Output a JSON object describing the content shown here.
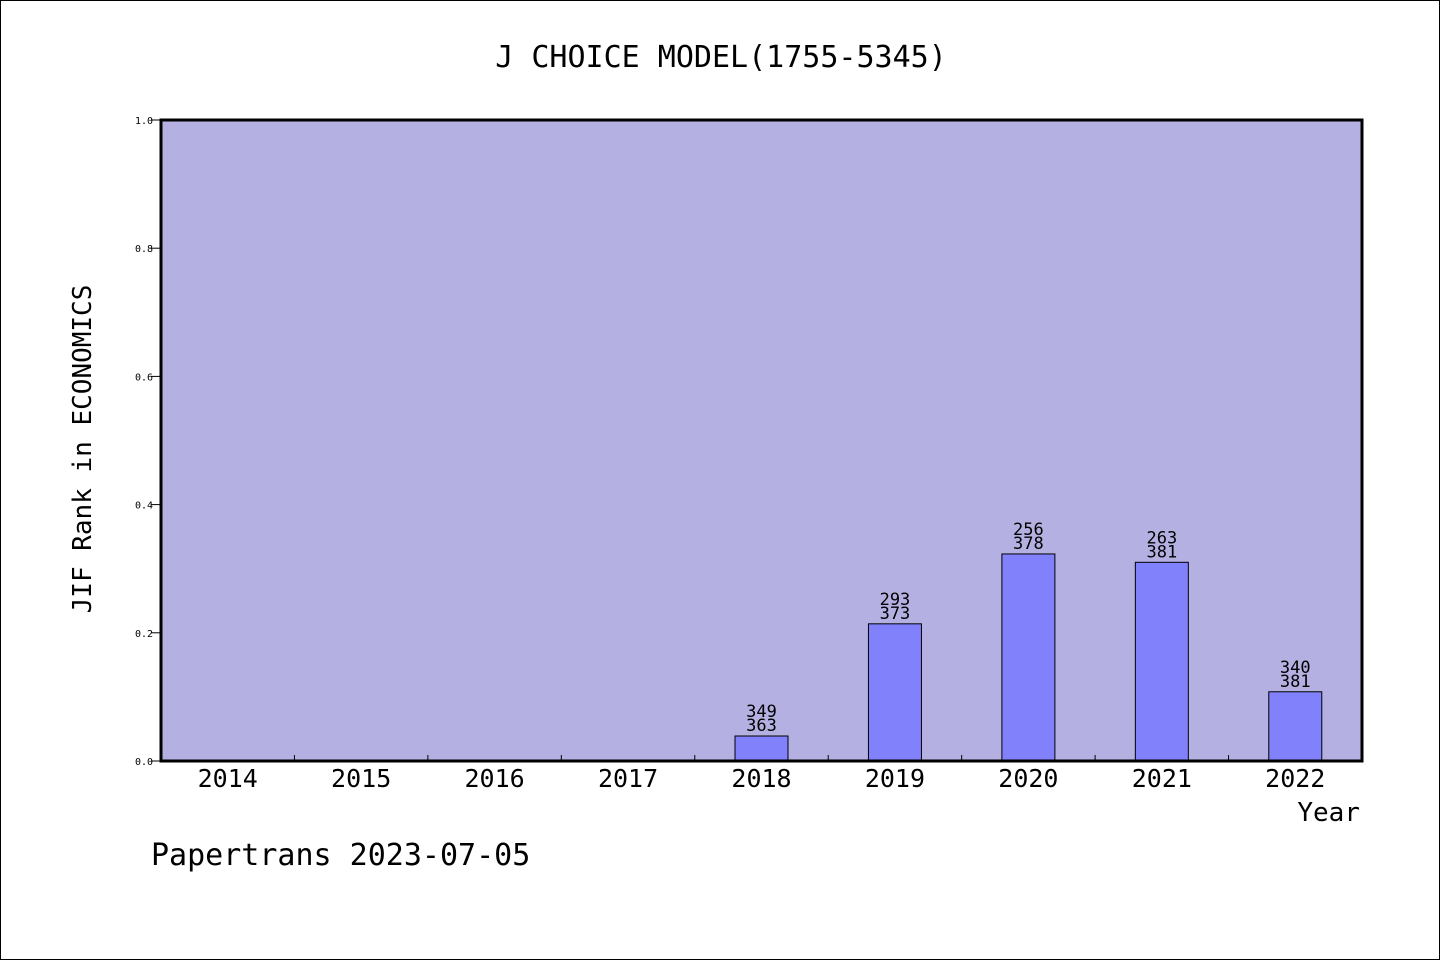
{
  "chart_data": {
    "type": "bar",
    "title": "J CHOICE MODEL(1755-5345)",
    "xlabel": "Year",
    "ylabel": "JIF Rank in ECONOMICS",
    "ylim": [
      0,
      1.0
    ],
    "yticks": [
      "0.0",
      "0.2",
      "0.4",
      "0.6",
      "0.8",
      "1.0"
    ],
    "categories": [
      "2014",
      "2015",
      "2016",
      "2017",
      "2018",
      "2019",
      "2020",
      "2021",
      "2022"
    ],
    "values": [
      null,
      null,
      null,
      null,
      0.039,
      0.214,
      0.323,
      0.31,
      0.108
    ],
    "bar_labels": [
      null,
      null,
      null,
      null,
      [
        "349",
        "363"
      ],
      [
        "293",
        "373"
      ],
      [
        "256",
        "378"
      ],
      [
        "263",
        "381"
      ],
      [
        "340",
        "381"
      ]
    ],
    "grid": false,
    "colors": {
      "plot_background": "#b5b0e2",
      "bar_fill": "#8181fb",
      "bar_edge": "#000000"
    }
  },
  "footer": {
    "credit": "Papertrans 2023-07-05"
  }
}
